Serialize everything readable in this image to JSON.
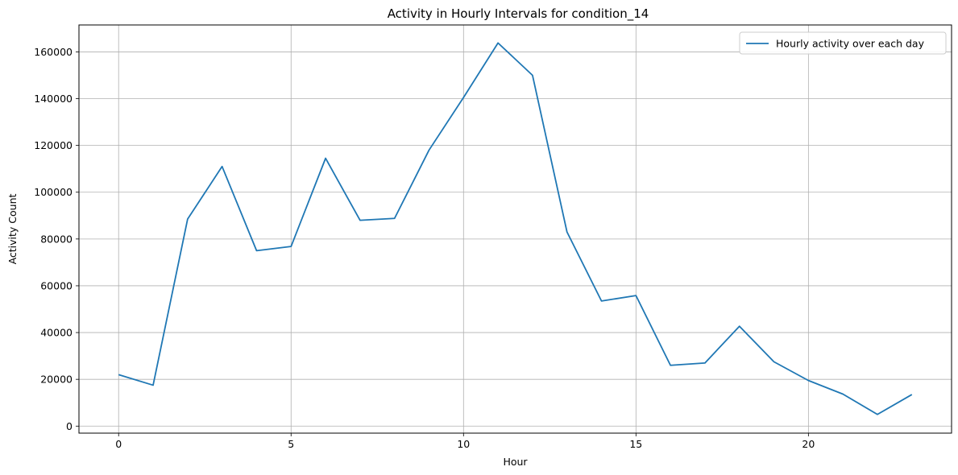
{
  "chart_data": {
    "type": "line",
    "title": "Activity in Hourly Intervals for condition_14",
    "xlabel": "Hour",
    "ylabel": "Activity Count",
    "xlim": [
      -1.15,
      24.15
    ],
    "ylim": [
      -3000,
      171500
    ],
    "xticks": [
      0,
      5,
      10,
      15,
      20
    ],
    "yticks": [
      0,
      20000,
      40000,
      60000,
      80000,
      100000,
      120000,
      140000,
      160000
    ],
    "grid": true,
    "legend_position": "top-right",
    "series": [
      {
        "name": "Hourly activity over each day",
        "color": "#1f77b4",
        "x": [
          0,
          1,
          2,
          3,
          4,
          5,
          6,
          7,
          8,
          9,
          10,
          11,
          12,
          13,
          14,
          15,
          16,
          17,
          18,
          19,
          20,
          21,
          22,
          23
        ],
        "y": [
          22000,
          17500,
          88500,
          111000,
          75000,
          76800,
          114500,
          88000,
          88800,
          118000,
          140500,
          163800,
          150000,
          83000,
          53500,
          55800,
          26000,
          27000,
          42700,
          27500,
          19500,
          13700,
          5000,
          13500
        ]
      }
    ]
  }
}
